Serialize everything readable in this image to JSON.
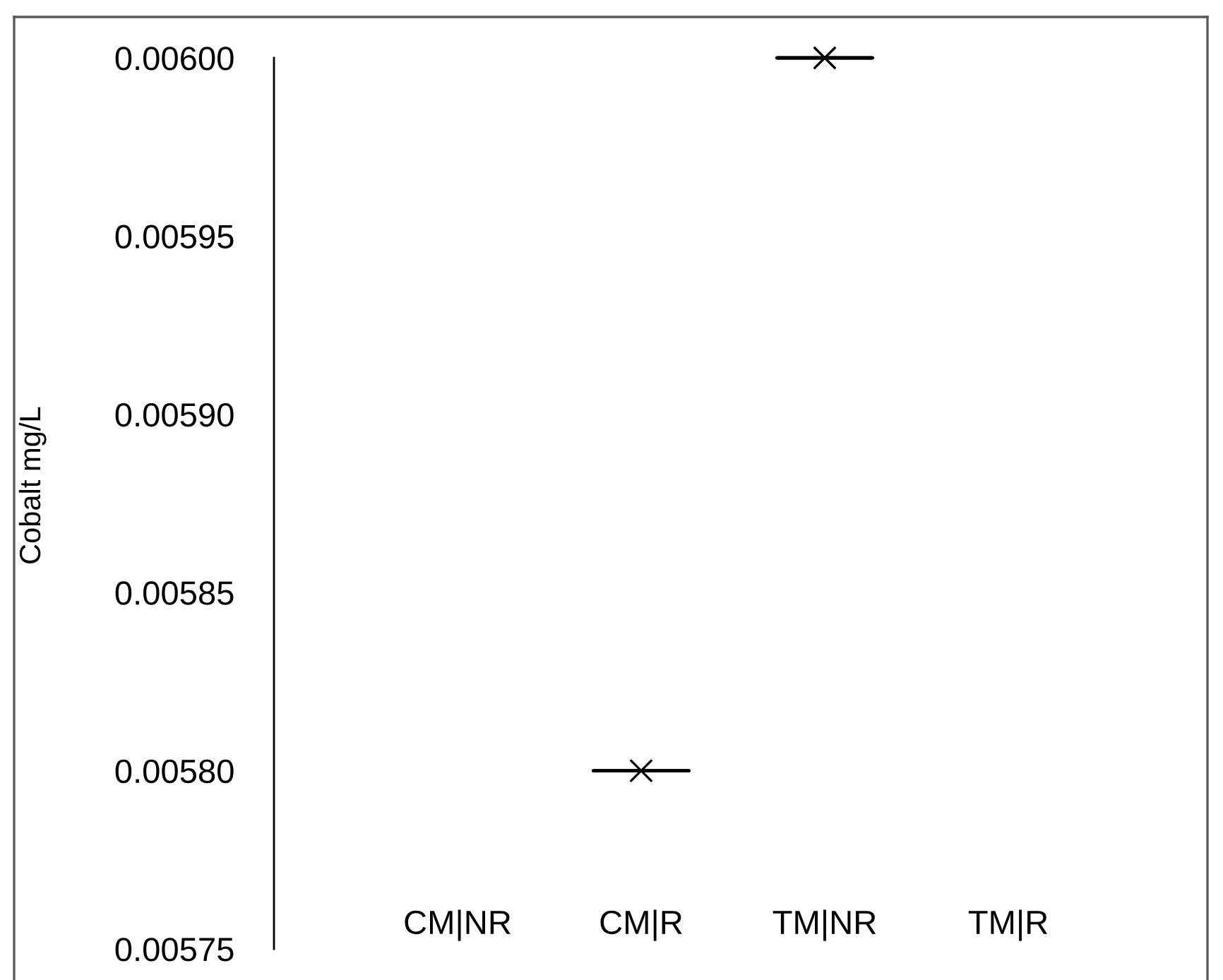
{
  "chart_data": {
    "type": "box",
    "ylabel": "Cobalt mg/L",
    "categories": [
      "CM|NR",
      "CM|R",
      "TM|NR",
      "TM|R"
    ],
    "boxes": [
      null,
      {
        "low": 0.0058,
        "q1": 0.0058,
        "median": 0.0058,
        "q3": 0.0058,
        "high": 0.0058,
        "mean": 0.0058
      },
      {
        "low": 0.006,
        "q1": 0.006,
        "median": 0.006,
        "q3": 0.006,
        "high": 0.006,
        "mean": 0.006
      },
      null
    ],
    "ylim": [
      0.00575,
      0.006
    ],
    "yticks": [
      {
        "value": 0.00575,
        "label": "0.00575"
      },
      {
        "value": 0.0058,
        "label": "0.00580"
      },
      {
        "value": 0.00585,
        "label": "0.00585"
      },
      {
        "value": 0.0059,
        "label": "0.00590"
      },
      {
        "value": 0.00595,
        "label": "0.00595"
      },
      {
        "value": 0.006,
        "label": "0.00600"
      }
    ],
    "marker": "cross"
  }
}
